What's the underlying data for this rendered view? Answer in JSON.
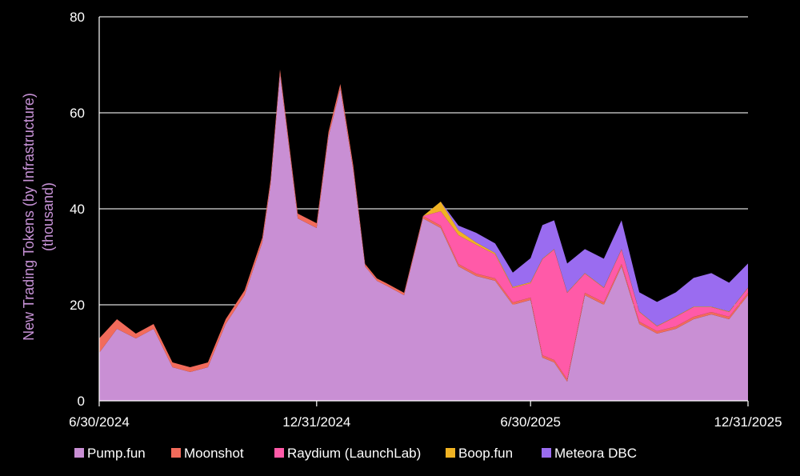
{
  "chart_data": {
    "type": "area",
    "stacked": true,
    "title": "",
    "ylabel_lines": [
      "New Trading Tokens (by Infrastructure)",
      "(thousand)"
    ],
    "xlabel": "",
    "ylim": [
      0,
      80
    ],
    "yticks": [
      0,
      20,
      40,
      60,
      80
    ],
    "xlim": [
      "2024-06-30",
      "2025-12-31"
    ],
    "xticks": [
      "6/30/2024",
      "12/31/2024",
      "6/30/2025",
      "12/31/2025"
    ],
    "grid": "horizontal",
    "legend_position": "bottom",
    "colors": {
      "background": "#000000",
      "grid": "#d9d9d9",
      "axis_text": "#ffffff",
      "ylabel": "#c792d6"
    },
    "x": [
      "2024-06-30",
      "2024-07-15",
      "2024-07-31",
      "2024-08-15",
      "2024-08-31",
      "2024-09-15",
      "2024-09-30",
      "2024-10-15",
      "2024-10-31",
      "2024-11-15",
      "2024-11-22",
      "2024-11-30",
      "2024-12-15",
      "2024-12-31",
      "2025-01-10",
      "2025-01-20",
      "2025-01-31",
      "2025-02-10",
      "2025-02-20",
      "2025-02-28",
      "2025-03-15",
      "2025-03-31",
      "2025-04-15",
      "2025-04-30",
      "2025-05-15",
      "2025-05-31",
      "2025-06-15",
      "2025-06-30",
      "2025-07-10",
      "2025-07-20",
      "2025-07-31",
      "2025-08-15",
      "2025-08-31",
      "2025-09-15",
      "2025-09-30",
      "2025-10-15",
      "2025-10-31",
      "2025-11-15",
      "2025-11-30",
      "2025-12-15",
      "2025-12-31"
    ],
    "series": [
      {
        "name": "Pump.fun",
        "color": "#c98fd4",
        "values": [
          10,
          15,
          13,
          15,
          7,
          6,
          7,
          16,
          22,
          33,
          45,
          68,
          38,
          36,
          55,
          65,
          48,
          28,
          25,
          24,
          22,
          38,
          36,
          28,
          26,
          25,
          20,
          21,
          9,
          8,
          4,
          22,
          20,
          28,
          16,
          14,
          15,
          17,
          18,
          17,
          22
        ]
      },
      {
        "name": "Moonshot",
        "color": "#f26b5b",
        "values": [
          3,
          2,
          1,
          1,
          1,
          1,
          1,
          1,
          1,
          1,
          1,
          1,
          1,
          1,
          1,
          1,
          1,
          0.5,
          0.5,
          0.5,
          0.5,
          0.5,
          0.5,
          0.5,
          0.5,
          0.5,
          0.5,
          0.5,
          0.5,
          0.5,
          0.5,
          0.5,
          0.5,
          0.5,
          0.5,
          0.5,
          0.5,
          0.5,
          0.5,
          0.5,
          0.5
        ]
      },
      {
        "name": "Raydium (LaunchLab)",
        "color": "#ff5aa8",
        "values": [
          0,
          0,
          0,
          0,
          0,
          0,
          0,
          0,
          0,
          0,
          0,
          0,
          0,
          0,
          0,
          0,
          0,
          0,
          0,
          0,
          0,
          0,
          3,
          6,
          6,
          5,
          3,
          3,
          20,
          23,
          18,
          4,
          3,
          3,
          2,
          1,
          2,
          2,
          1,
          1,
          1
        ]
      },
      {
        "name": "Boop.fun",
        "color": "#f0b323",
        "values": [
          0,
          0,
          0,
          0,
          0,
          0,
          0,
          0,
          0,
          0,
          0,
          0,
          0,
          0,
          0,
          0,
          0,
          0,
          0,
          0,
          0,
          0,
          2,
          1,
          0.5,
          0.3,
          0.2,
          0.2,
          0.1,
          0.1,
          0.1,
          0.1,
          0.1,
          0.1,
          0.1,
          0.1,
          0.1,
          0.1,
          0.1,
          0.1,
          0.1
        ]
      },
      {
        "name": "Meteora DBC",
        "color": "#9a6cf0",
        "values": [
          0,
          0,
          0,
          0,
          0,
          0,
          0,
          0,
          0,
          0,
          0,
          0,
          0,
          0,
          0,
          0,
          0,
          0,
          0,
          0,
          0,
          0,
          0,
          1,
          2,
          2,
          3,
          5,
          7,
          6,
          6,
          5,
          6,
          6,
          4,
          5,
          5,
          6,
          7,
          6,
          5
        ]
      }
    ]
  }
}
